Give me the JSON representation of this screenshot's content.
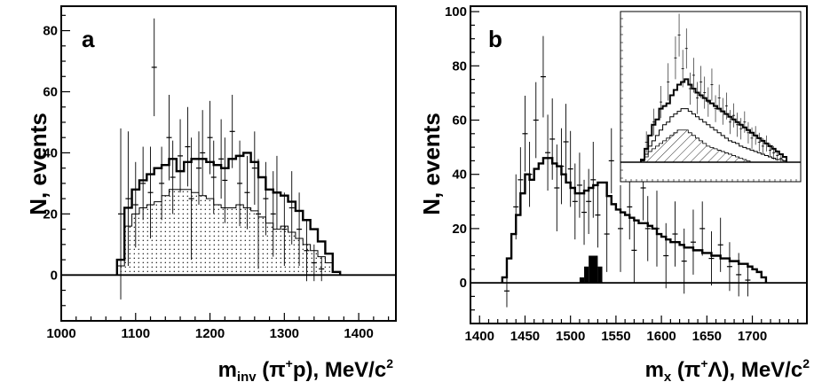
{
  "chart_data": [
    {
      "type": "histogram",
      "panel_label": "a",
      "xlabel": {
        "main": "m",
        "sub": "inv",
        "rest_1": " (π",
        "sup": "+",
        "rest_2": "p), MeV/c",
        "sup2": "2"
      },
      "ylabel": "N, events",
      "xlim": [
        1000,
        1450
      ],
      "ylim": [
        -15,
        88
      ],
      "x_ticks": [
        1000,
        1100,
        1200,
        1300,
        1400
      ],
      "y_ticks": [
        0,
        20,
        40,
        60,
        80
      ],
      "bin_width": 10,
      "bin_start": 1075,
      "series": [
        {
          "style": "thick-step",
          "values": [
            5,
            22,
            28,
            31,
            33,
            35,
            36,
            38,
            34,
            37,
            38,
            38,
            37,
            36,
            35,
            38,
            39,
            40,
            37,
            32,
            28,
            27,
            26,
            24,
            21,
            18,
            15,
            11,
            7,
            1
          ]
        },
        {
          "style": "thin-step-dotted-fill",
          "values": [
            3,
            16,
            20,
            22,
            23,
            24,
            26,
            28,
            28,
            28,
            27,
            26,
            25,
            23,
            22,
            22,
            23,
            22,
            21,
            19,
            17,
            15,
            16,
            14,
            12,
            10,
            8,
            6,
            4,
            1
          ]
        }
      ],
      "points": [
        {
          "x": 1080,
          "y": 20,
          "err": 28
        },
        {
          "x": 1090,
          "y": 25,
          "err": 22
        },
        {
          "x": 1100,
          "y": 23,
          "err": 14
        },
        {
          "x": 1110,
          "y": 30,
          "err": 12
        },
        {
          "x": 1120,
          "y": 27,
          "err": 15
        },
        {
          "x": 1125,
          "y": 68,
          "err": 16
        },
        {
          "x": 1135,
          "y": 30,
          "err": 12
        },
        {
          "x": 1145,
          "y": 45,
          "err": 14
        },
        {
          "x": 1150,
          "y": 32,
          "err": 12
        },
        {
          "x": 1160,
          "y": 39,
          "err": 12
        },
        {
          "x": 1170,
          "y": 42,
          "err": 13
        },
        {
          "x": 1175,
          "y": 25,
          "err": 20
        },
        {
          "x": 1185,
          "y": 35,
          "err": 12
        },
        {
          "x": 1190,
          "y": 40,
          "err": 14
        },
        {
          "x": 1200,
          "y": 45,
          "err": 12
        },
        {
          "x": 1205,
          "y": 32,
          "err": 12
        },
        {
          "x": 1215,
          "y": 38,
          "err": 13
        },
        {
          "x": 1220,
          "y": 31,
          "err": 14
        },
        {
          "x": 1230,
          "y": 47,
          "err": 12
        },
        {
          "x": 1240,
          "y": 30,
          "err": 14
        },
        {
          "x": 1250,
          "y": 27,
          "err": 12
        },
        {
          "x": 1260,
          "y": 35,
          "err": 12
        },
        {
          "x": 1265,
          "y": 20,
          "err": 18
        },
        {
          "x": 1275,
          "y": 25,
          "err": 12
        },
        {
          "x": 1285,
          "y": 20,
          "err": 14
        },
        {
          "x": 1290,
          "y": 27,
          "err": 12
        },
        {
          "x": 1300,
          "y": 15,
          "err": 12
        },
        {
          "x": 1310,
          "y": 22,
          "err": 12
        },
        {
          "x": 1320,
          "y": 15,
          "err": 12
        },
        {
          "x": 1330,
          "y": 8,
          "err": 10
        },
        {
          "x": 1340,
          "y": 4,
          "err": 6
        },
        {
          "x": 1350,
          "y": 2,
          "err": 4
        }
      ]
    },
    {
      "type": "histogram",
      "panel_label": "b",
      "xlabel": {
        "main": "m",
        "sub": "x",
        "rest_1": " (π",
        "sup": "+",
        "rest_2": "Λ), MeV/c",
        "sup2": "2"
      },
      "ylabel": "N, events",
      "xlim": [
        1390,
        1760
      ],
      "ylim": [
        -15,
        102
      ],
      "x_ticks": [
        1400,
        1450,
        1500,
        1550,
        1600,
        1650,
        1700
      ],
      "y_ticks": [
        0,
        20,
        40,
        60,
        80,
        100
      ],
      "bin_width": 5,
      "bin_start": 1425,
      "series": [
        {
          "style": "thick-step",
          "values": [
            2,
            9,
            18,
            25,
            33,
            40,
            38,
            42,
            44,
            46,
            46,
            44,
            43,
            40,
            37,
            35,
            33,
            33,
            34,
            35,
            36,
            37,
            37,
            32,
            29,
            27,
            26,
            25,
            24,
            23,
            22,
            22,
            21,
            20,
            18,
            17,
            16,
            15,
            15,
            14,
            13,
            13,
            12,
            12,
            11,
            11,
            10,
            10,
            9,
            9,
            8,
            8,
            7,
            7,
            6,
            5,
            4,
            2
          ]
        }
      ],
      "points": [
        {
          "x": 1430,
          "y": -3,
          "err": 6
        },
        {
          "x": 1440,
          "y": 28,
          "err": 12
        },
        {
          "x": 1445,
          "y": 38,
          "err": 12
        },
        {
          "x": 1450,
          "y": 55,
          "err": 14
        },
        {
          "x": 1455,
          "y": 40,
          "err": 12
        },
        {
          "x": 1462,
          "y": 60,
          "err": 14
        },
        {
          "x": 1470,
          "y": 76,
          "err": 15
        },
        {
          "x": 1475,
          "y": 48,
          "err": 14
        },
        {
          "x": 1480,
          "y": 53,
          "err": 15
        },
        {
          "x": 1485,
          "y": 35,
          "err": 16
        },
        {
          "x": 1490,
          "y": 43,
          "err": 14
        },
        {
          "x": 1495,
          "y": 52,
          "err": 14
        },
        {
          "x": 1500,
          "y": 42,
          "err": 14
        },
        {
          "x": 1505,
          "y": 30,
          "err": 14
        },
        {
          "x": 1510,
          "y": 36,
          "err": 12
        },
        {
          "x": 1515,
          "y": 26,
          "err": 12
        },
        {
          "x": 1520,
          "y": 30,
          "err": 12
        },
        {
          "x": 1525,
          "y": 38,
          "err": 14
        },
        {
          "x": 1530,
          "y": 25,
          "err": 12
        },
        {
          "x": 1540,
          "y": 18,
          "err": 14
        },
        {
          "x": 1545,
          "y": 45,
          "err": 12
        },
        {
          "x": 1555,
          "y": 20,
          "err": 16
        },
        {
          "x": 1565,
          "y": 28,
          "err": 12
        },
        {
          "x": 1570,
          "y": 12,
          "err": 12
        },
        {
          "x": 1580,
          "y": 35,
          "err": 12
        },
        {
          "x": 1585,
          "y": 20,
          "err": 12
        },
        {
          "x": 1595,
          "y": 20,
          "err": 14
        },
        {
          "x": 1605,
          "y": 10,
          "err": 12
        },
        {
          "x": 1615,
          "y": 18,
          "err": 12
        },
        {
          "x": 1625,
          "y": 8,
          "err": 12
        },
        {
          "x": 1635,
          "y": 15,
          "err": 12
        },
        {
          "x": 1645,
          "y": 20,
          "err": 10
        },
        {
          "x": 1655,
          "y": 9,
          "err": 10
        },
        {
          "x": 1665,
          "y": 14,
          "err": 10
        },
        {
          "x": 1675,
          "y": 6,
          "err": 9
        },
        {
          "x": 1685,
          "y": 3,
          "err": 8
        },
        {
          "x": 1695,
          "y": 1,
          "err": 6
        }
      ],
      "filled_bars": [
        {
          "x0": 1510,
          "x1": 1515,
          "y": 2
        },
        {
          "x0": 1515,
          "x1": 1520,
          "y": 6
        },
        {
          "x0": 1520,
          "x1": 1530,
          "y": 10
        },
        {
          "x0": 1530,
          "x1": 1535,
          "y": 6
        }
      ],
      "inset": {
        "thick_values": [
          2,
          10,
          20,
          28,
          32,
          40,
          42,
          44,
          50,
          54,
          58,
          60,
          62,
          58,
          55,
          52,
          50,
          48,
          46,
          44,
          42,
          40,
          38,
          36,
          34,
          32,
          30,
          28,
          26,
          24,
          22,
          20,
          18,
          16,
          14,
          12,
          10,
          8,
          6,
          4
        ],
        "thin_values": [
          1,
          6,
          12,
          16,
          20,
          24,
          28,
          30,
          34,
          36,
          38,
          40,
          40,
          38,
          36,
          34,
          32,
          30,
          28,
          26,
          24,
          22,
          20,
          18,
          16,
          15,
          14,
          12,
          11,
          10,
          9,
          8,
          7,
          6,
          5,
          4,
          3,
          2,
          2,
          1
        ],
        "hatch_values": [
          1,
          4,
          8,
          10,
          12,
          14,
          16,
          18,
          20,
          22,
          24,
          24,
          24,
          22,
          20,
          18,
          16,
          14,
          12,
          11,
          10,
          9,
          8,
          7,
          6,
          5,
          4,
          3,
          2,
          1
        ],
        "points": [
          {
            "i": 1,
            "y": 15,
            "e": 8
          },
          {
            "i": 3,
            "y": 30,
            "e": 10
          },
          {
            "i": 5,
            "y": 45,
            "e": 12
          },
          {
            "i": 7,
            "y": 60,
            "e": 14
          },
          {
            "i": 9,
            "y": 78,
            "e": 16
          },
          {
            "i": 10,
            "y": 95,
            "e": 16
          },
          {
            "i": 11,
            "y": 70,
            "e": 14
          },
          {
            "i": 12,
            "y": 85,
            "e": 15
          },
          {
            "i": 13,
            "y": 55,
            "e": 12
          },
          {
            "i": 14,
            "y": 65,
            "e": 13
          },
          {
            "i": 15,
            "y": 48,
            "e": 12
          },
          {
            "i": 16,
            "y": 60,
            "e": 12
          },
          {
            "i": 17,
            "y": 52,
            "e": 12
          },
          {
            "i": 18,
            "y": 45,
            "e": 11
          },
          {
            "i": 19,
            "y": 58,
            "e": 12
          },
          {
            "i": 20,
            "y": 40,
            "e": 10
          },
          {
            "i": 21,
            "y": 48,
            "e": 10
          },
          {
            "i": 22,
            "y": 38,
            "e": 10
          },
          {
            "i": 23,
            "y": 42,
            "e": 10
          },
          {
            "i": 24,
            "y": 30,
            "e": 9
          },
          {
            "i": 25,
            "y": 35,
            "e": 9
          },
          {
            "i": 26,
            "y": 28,
            "e": 9
          },
          {
            "i": 27,
            "y": 25,
            "e": 8
          },
          {
            "i": 28,
            "y": 30,
            "e": 8
          },
          {
            "i": 29,
            "y": 22,
            "e": 8
          },
          {
            "i": 30,
            "y": 18,
            "e": 8
          },
          {
            "i": 31,
            "y": 20,
            "e": 7
          },
          {
            "i": 32,
            "y": 15,
            "e": 7
          },
          {
            "i": 33,
            "y": 12,
            "e": 6
          },
          {
            "i": 34,
            "y": 14,
            "e": 6
          },
          {
            "i": 35,
            "y": 9,
            "e": 5
          },
          {
            "i": 36,
            "y": 7,
            "e": 5
          },
          {
            "i": 37,
            "y": 5,
            "e": 4
          },
          {
            "i": 38,
            "y": 3,
            "e": 3
          }
        ],
        "ymax": 110
      }
    }
  ]
}
